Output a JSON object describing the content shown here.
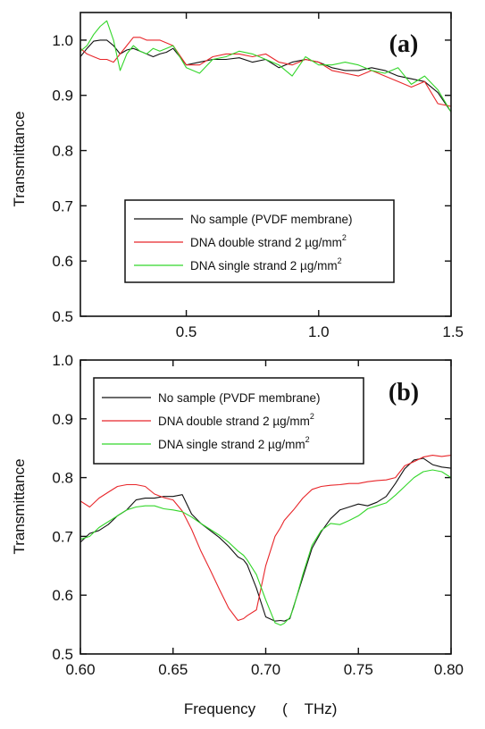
{
  "figure": {
    "ylabel": "Transmittance",
    "xlabel_parts": [
      "Frequency",
      "(",
      "THz)"
    ]
  },
  "chart_data": [
    {
      "type": "line",
      "panel_label": "(a)",
      "xlim": [
        0.1,
        1.5
      ],
      "ylim": [
        0.5,
        1.05
      ],
      "x_ticks": [
        0.5,
        1.0,
        1.5
      ],
      "x_tick_labels": [
        "0.5",
        "1.0",
        "1.5"
      ],
      "y_ticks": [
        0.5,
        0.6,
        0.7,
        0.8,
        0.9,
        1.0
      ],
      "y_tick_labels": [
        "0.5",
        "0.6",
        "0.7",
        "0.8",
        "0.9",
        "1.0"
      ],
      "xlabel": "",
      "ylabel": "Transmittance",
      "legend_position": "lower-center",
      "grid": false,
      "x": [
        0.1,
        0.125,
        0.15,
        0.175,
        0.2,
        0.225,
        0.25,
        0.275,
        0.3,
        0.325,
        0.35,
        0.375,
        0.4,
        0.425,
        0.45,
        0.5,
        0.55,
        0.6,
        0.65,
        0.7,
        0.75,
        0.8,
        0.85,
        0.9,
        0.95,
        1.0,
        1.05,
        1.1,
        1.15,
        1.2,
        1.25,
        1.3,
        1.35,
        1.4,
        1.45,
        1.5
      ],
      "series": [
        {
          "name_main": "No sample (PVDF membrane)",
          "name_sup": "",
          "color": "#111111",
          "values": [
            0.97,
            0.985,
            0.998,
            1.0,
            1.0,
            0.99,
            0.975,
            0.982,
            0.985,
            0.98,
            0.975,
            0.97,
            0.975,
            0.978,
            0.985,
            0.955,
            0.96,
            0.965,
            0.965,
            0.968,
            0.96,
            0.965,
            0.95,
            0.96,
            0.965,
            0.96,
            0.95,
            0.945,
            0.945,
            0.95,
            0.945,
            0.935,
            0.93,
            0.925,
            0.905,
            0.87
          ]
        },
        {
          "name_main": "DNA double strand 2 µg/mm",
          "name_sup": "2",
          "color": "#e8262a",
          "values": [
            0.985,
            0.975,
            0.97,
            0.965,
            0.965,
            0.96,
            0.975,
            0.99,
            1.005,
            1.005,
            1.0,
            1.0,
            1.0,
            0.995,
            0.99,
            0.955,
            0.955,
            0.97,
            0.975,
            0.975,
            0.97,
            0.975,
            0.96,
            0.955,
            0.965,
            0.96,
            0.945,
            0.94,
            0.935,
            0.945,
            0.935,
            0.925,
            0.915,
            0.925,
            0.885,
            0.88
          ]
        },
        {
          "name_main": "DNA single strand 2 µg/mm",
          "name_sup": "2",
          "color": "#33d62a",
          "values": [
            0.98,
            0.99,
            1.01,
            1.025,
            1.035,
            1.0,
            0.945,
            0.975,
            0.99,
            0.98,
            0.975,
            0.985,
            0.98,
            0.985,
            0.99,
            0.95,
            0.94,
            0.965,
            0.97,
            0.98,
            0.975,
            0.965,
            0.955,
            0.935,
            0.97,
            0.955,
            0.955,
            0.96,
            0.955,
            0.945,
            0.94,
            0.95,
            0.92,
            0.935,
            0.91,
            0.87
          ]
        }
      ]
    },
    {
      "type": "line",
      "panel_label": "(b)",
      "xlim": [
        0.6,
        0.8
      ],
      "ylim": [
        0.5,
        1.0
      ],
      "x_ticks": [
        0.6,
        0.65,
        0.7,
        0.75,
        0.8
      ],
      "x_tick_labels": [
        "0.60",
        "0.65",
        "0.70",
        "0.75",
        "0.80"
      ],
      "y_ticks": [
        0.5,
        0.6,
        0.7,
        0.8,
        0.9,
        1.0
      ],
      "y_tick_labels": [
        "0.5",
        "0.6",
        "0.7",
        "0.8",
        "0.9",
        "1.0"
      ],
      "xlabel": "Frequency ( THz)",
      "ylabel": "Transmittance",
      "legend_position": "top-left",
      "grid": false,
      "x": [
        0.6,
        0.605,
        0.61,
        0.615,
        0.62,
        0.625,
        0.63,
        0.635,
        0.64,
        0.645,
        0.65,
        0.655,
        0.66,
        0.665,
        0.67,
        0.675,
        0.68,
        0.685,
        0.688,
        0.69,
        0.695,
        0.7,
        0.705,
        0.708,
        0.71,
        0.713,
        0.715,
        0.72,
        0.725,
        0.73,
        0.735,
        0.74,
        0.745,
        0.75,
        0.755,
        0.76,
        0.765,
        0.77,
        0.775,
        0.78,
        0.785,
        0.79,
        0.795,
        0.8
      ],
      "series": [
        {
          "name_main": "No sample (PVDF membrane)",
          "name_sup": "",
          "color": "#111111",
          "values": [
            0.69,
            0.705,
            0.71,
            0.72,
            0.735,
            0.745,
            0.762,
            0.765,
            0.765,
            0.768,
            0.768,
            0.771,
            0.738,
            0.722,
            0.71,
            0.698,
            0.683,
            0.665,
            0.66,
            0.652,
            0.612,
            0.563,
            0.556,
            0.557,
            0.556,
            0.56,
            0.58,
            0.63,
            0.68,
            0.708,
            0.73,
            0.745,
            0.75,
            0.755,
            0.752,
            0.758,
            0.768,
            0.79,
            0.815,
            0.83,
            0.833,
            0.822,
            0.818,
            0.816
          ]
        },
        {
          "name_main": "DNA double strand 2 µg/mm",
          "name_sup": "2",
          "color": "#e8262a",
          "values": [
            0.76,
            0.75,
            0.765,
            0.775,
            0.785,
            0.788,
            0.788,
            0.785,
            0.772,
            0.766,
            0.762,
            0.743,
            0.712,
            0.675,
            0.643,
            0.61,
            0.578,
            0.557,
            0.56,
            0.565,
            0.575,
            0.65,
            0.7,
            0.715,
            0.727,
            0.738,
            0.745,
            0.765,
            0.78,
            0.785,
            0.787,
            0.788,
            0.79,
            0.79,
            0.793,
            0.795,
            0.796,
            0.8,
            0.82,
            0.827,
            0.835,
            0.838,
            0.836,
            0.838
          ]
        },
        {
          "name_main": "DNA single strand 2 µg/mm",
          "name_sup": "2",
          "color": "#33d62a",
          "values": [
            0.695,
            0.7,
            0.715,
            0.725,
            0.735,
            0.745,
            0.75,
            0.752,
            0.752,
            0.747,
            0.745,
            0.742,
            0.733,
            0.722,
            0.712,
            0.702,
            0.69,
            0.675,
            0.668,
            0.66,
            0.635,
            0.592,
            0.553,
            0.549,
            0.552,
            0.562,
            0.578,
            0.635,
            0.685,
            0.71,
            0.722,
            0.72,
            0.727,
            0.735,
            0.747,
            0.752,
            0.757,
            0.77,
            0.785,
            0.8,
            0.81,
            0.813,
            0.81,
            0.8
          ]
        }
      ]
    }
  ]
}
